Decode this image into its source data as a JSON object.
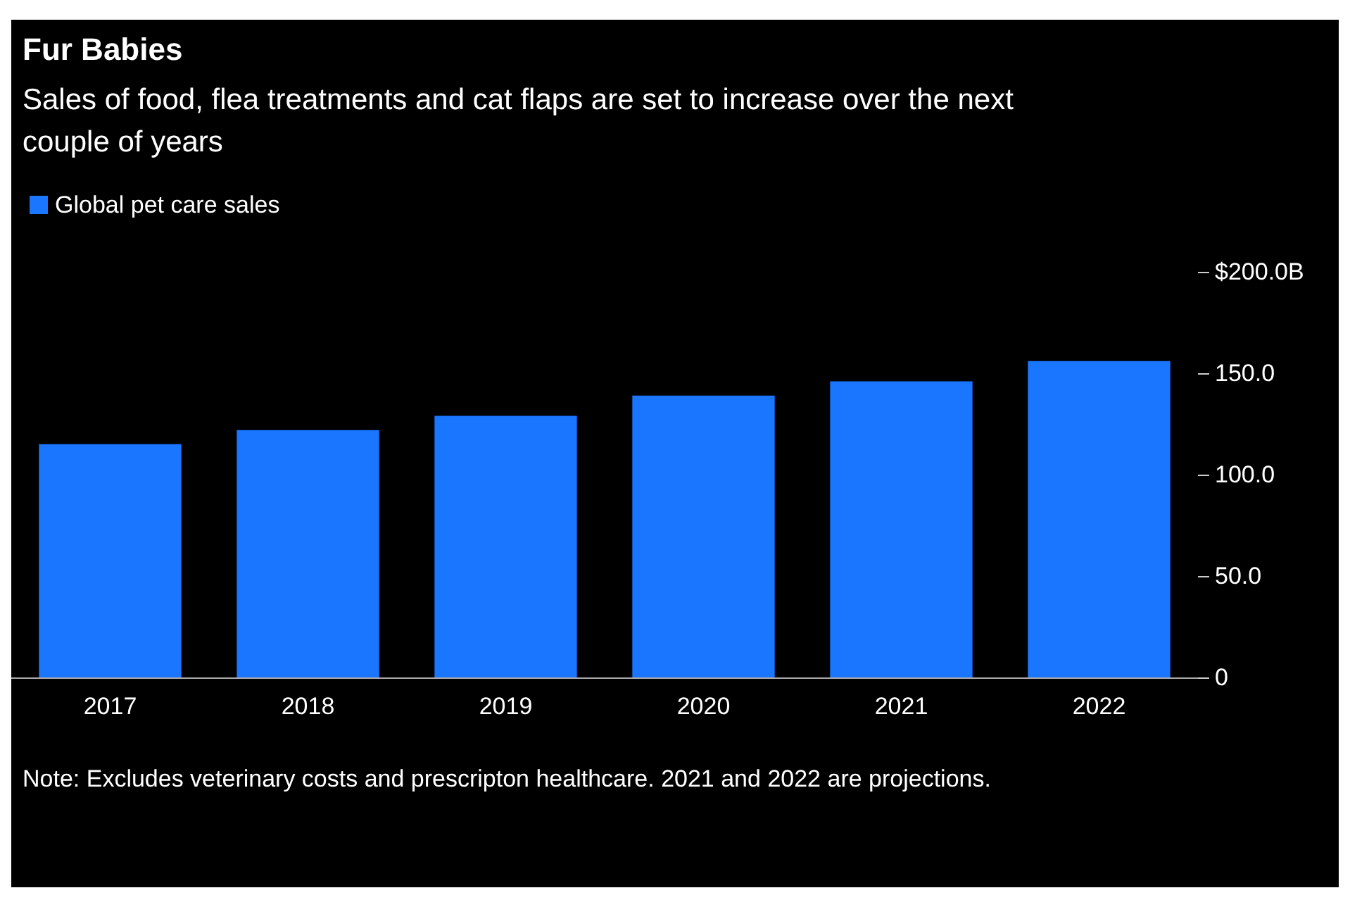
{
  "chart_data": {
    "type": "bar",
    "title": "Fur Babies",
    "subtitle": "Sales of food, flea treatments and cat flaps are set to increase over the next couple of years",
    "categories": [
      "2017",
      "2018",
      "2019",
      "2020",
      "2021",
      "2022"
    ],
    "series": [
      {
        "name": "Global pet care sales",
        "color": "#1a75ff",
        "values": [
          115,
          122,
          129,
          139,
          146,
          156
        ]
      }
    ],
    "ylim": [
      0,
      200
    ],
    "yticks": [
      0,
      {
        "value": 50,
        "label": "50.0"
      },
      {
        "value": 100,
        "label": "100.0"
      },
      {
        "value": 150,
        "label": "150.0"
      },
      {
        "value": 200,
        "label": "$200.0B"
      }
    ],
    "legend": "top left",
    "annotations": [
      "Note: Excludes veterinary costs and prescripton healthcare. 2021 and 2022 are projections."
    ]
  }
}
